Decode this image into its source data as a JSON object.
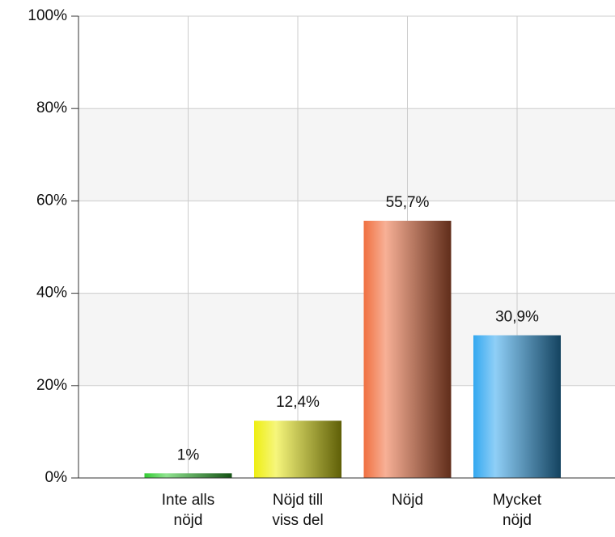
{
  "chart_data": {
    "type": "bar",
    "categories": [
      "Inte alls nöjd",
      "Nöjd till viss del",
      "Nöjd",
      "Mycket nöjd"
    ],
    "values": [
      1,
      12.4,
      55.7,
      30.9
    ],
    "value_labels": [
      "1%",
      "12,4%",
      "55,7%",
      "30,9%"
    ],
    "colors": [
      "#33cc33",
      "#eeee11",
      "#f07040",
      "#33a8f0"
    ],
    "ylim": [
      0,
      100
    ],
    "yticks": [
      {
        "value": 0,
        "label": "0%"
      },
      {
        "value": 20,
        "label": "20%"
      },
      {
        "value": 40,
        "label": "40%"
      },
      {
        "value": 60,
        "label": "60%"
      },
      {
        "value": 80,
        "label": "80%"
      },
      {
        "value": 100,
        "label": "100%"
      }
    ],
    "grid": true
  }
}
